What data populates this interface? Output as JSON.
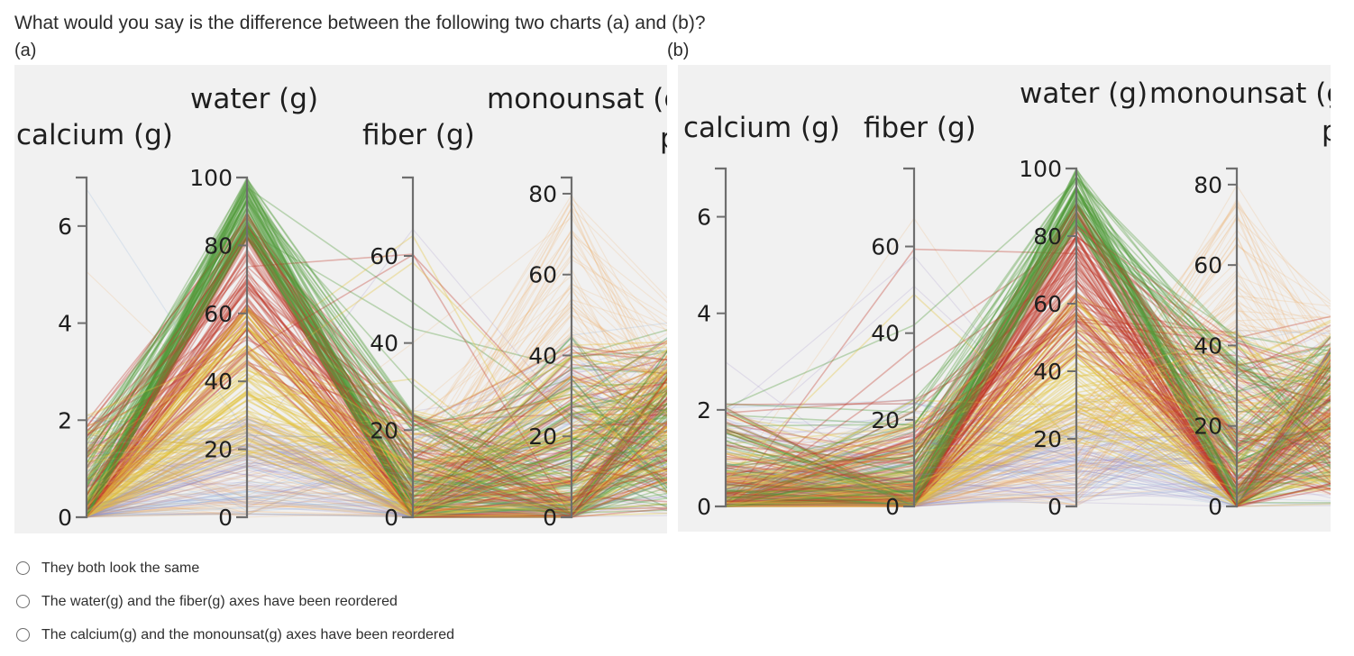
{
  "question": {
    "text": "What would you say is the difference between the following two charts (a) and (b)?"
  },
  "labels": {
    "a": "(a)",
    "b": "(b)"
  },
  "colors": {
    "background": "#f1f1f1",
    "axis": "#6e6e6e",
    "green": "#4f9a3a",
    "red": "#c0392b",
    "yellow": "#e3c23c",
    "orange": "#f0a85a",
    "purple": "#8e7cc3",
    "blue": "#7aa6d8"
  },
  "charts": {
    "a": {
      "axes": [
        {
          "name": "calcium (g)",
          "max": 7,
          "ticks": [
            "0",
            "2",
            "4",
            "6"
          ],
          "tick_values": [
            0,
            2,
            4,
            6
          ]
        },
        {
          "name": "water (g)",
          "max": 100,
          "ticks": [
            "0",
            "20",
            "40",
            "60",
            "80",
            "100"
          ],
          "tick_values": [
            0,
            20,
            40,
            60,
            80,
            100
          ]
        },
        {
          "name": "fiber (g)",
          "max": 78,
          "ticks": [
            "0",
            "20",
            "40",
            "60"
          ],
          "tick_values": [
            0,
            20,
            40,
            60
          ]
        },
        {
          "name": "monounsat (g)",
          "max": 84,
          "ticks": [
            "0",
            "20",
            "40",
            "60",
            "80"
          ],
          "tick_values": [
            0,
            20,
            40,
            60,
            80
          ]
        }
      ],
      "cut_label": "p"
    },
    "b": {
      "axes": [
        {
          "name": "calcium (g)",
          "max": 7,
          "ticks": [
            "0",
            "2",
            "4",
            "6"
          ],
          "tick_values": [
            0,
            2,
            4,
            6
          ]
        },
        {
          "name": "fiber (g)",
          "max": 78,
          "ticks": [
            "0",
            "20",
            "40",
            "60"
          ],
          "tick_values": [
            0,
            20,
            40,
            60
          ]
        },
        {
          "name": "water (g)",
          "max": 100,
          "ticks": [
            "0",
            "20",
            "40",
            "60",
            "80",
            "100"
          ],
          "tick_values": [
            0,
            20,
            40,
            60,
            80,
            100
          ]
        },
        {
          "name": "monounsat (g)",
          "max": 84,
          "ticks": [
            "0",
            "20",
            "40",
            "60",
            "80"
          ],
          "tick_values": [
            0,
            20,
            40,
            60,
            80
          ]
        }
      ],
      "cut_label": "p"
    }
  },
  "options": [
    {
      "label": "They both look the same"
    },
    {
      "label": "The water(g) and the fiber(g) axes have been reordered"
    },
    {
      "label": "The calcium(g) and the monounsat(g) axes have been reordered"
    }
  ]
}
